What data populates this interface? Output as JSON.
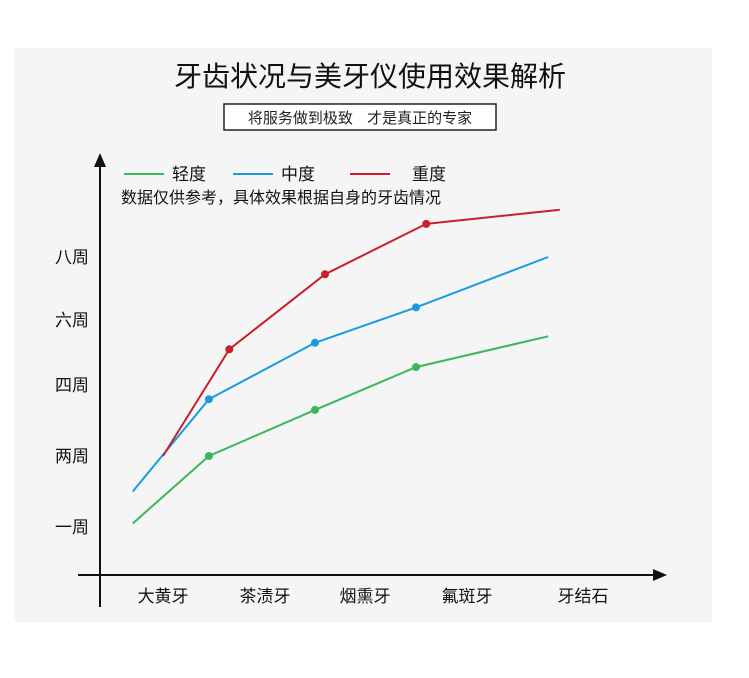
{
  "chart_data": {
    "type": "line",
    "title": "牙齿状况与美牙仪使用效果解析",
    "subtitle": "将服务做到极致   才是真正的专家",
    "note": "数据仅供参考，具体效果根据自身的牙齿情况",
    "categories": [
      "大黄牙",
      "茶渍牙",
      "烟熏牙",
      "氟斑牙",
      "牙结石"
    ],
    "y_ticks": [
      {
        "label": "一周",
        "value": 1
      },
      {
        "label": "两周",
        "value": 2
      },
      {
        "label": "四周",
        "value": 4
      },
      {
        "label": "六周",
        "value": 6
      },
      {
        "label": "八周",
        "value": 8
      }
    ],
    "series": [
      {
        "name": "轻度",
        "color": "#3cb65a",
        "x": [
          -0.3,
          0.45,
          1.5,
          2.5,
          3.7
        ],
        "values": [
          1.05,
          2.0,
          3.3,
          4.55,
          5.5
        ]
      },
      {
        "name": "中度",
        "color": "#1a9be0",
        "x": [
          -0.3,
          0.45,
          1.5,
          2.5,
          3.7
        ],
        "values": [
          1.5,
          3.6,
          5.3,
          6.4,
          8.0
        ]
      },
      {
        "name": "重度",
        "color": "#c8202e",
        "x": [
          0.0,
          0.65,
          1.6,
          2.6,
          3.8
        ],
        "values": [
          2.0,
          5.1,
          7.45,
          9.05,
          9.5
        ]
      }
    ],
    "grid": false,
    "legend_position": "top-left"
  }
}
